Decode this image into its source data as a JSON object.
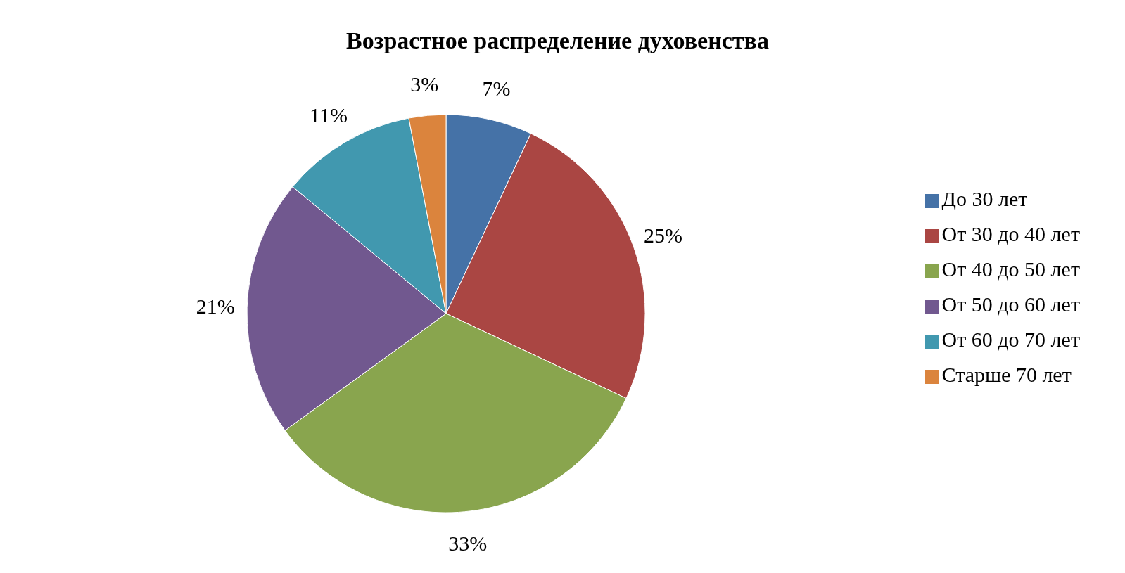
{
  "chart_data": {
    "type": "pie",
    "title": "Возрастное распределение духовенства",
    "categories": [
      "До 30 лет",
      "От 30 до 40 лет",
      "От 40 до 50 лет",
      "От 50 до 60 лет",
      "От 60 до 70 лет",
      "Старше 70 лет"
    ],
    "values": [
      7,
      25,
      33,
      21,
      11,
      3
    ],
    "colors": [
      "#4572a7",
      "#aa4643",
      "#89a54e",
      "#71588f",
      "#4198af",
      "#db843d"
    ],
    "value_labels": [
      "7%",
      "25%",
      "33%",
      "21%",
      "11%",
      "3%"
    ],
    "legend": "right"
  }
}
